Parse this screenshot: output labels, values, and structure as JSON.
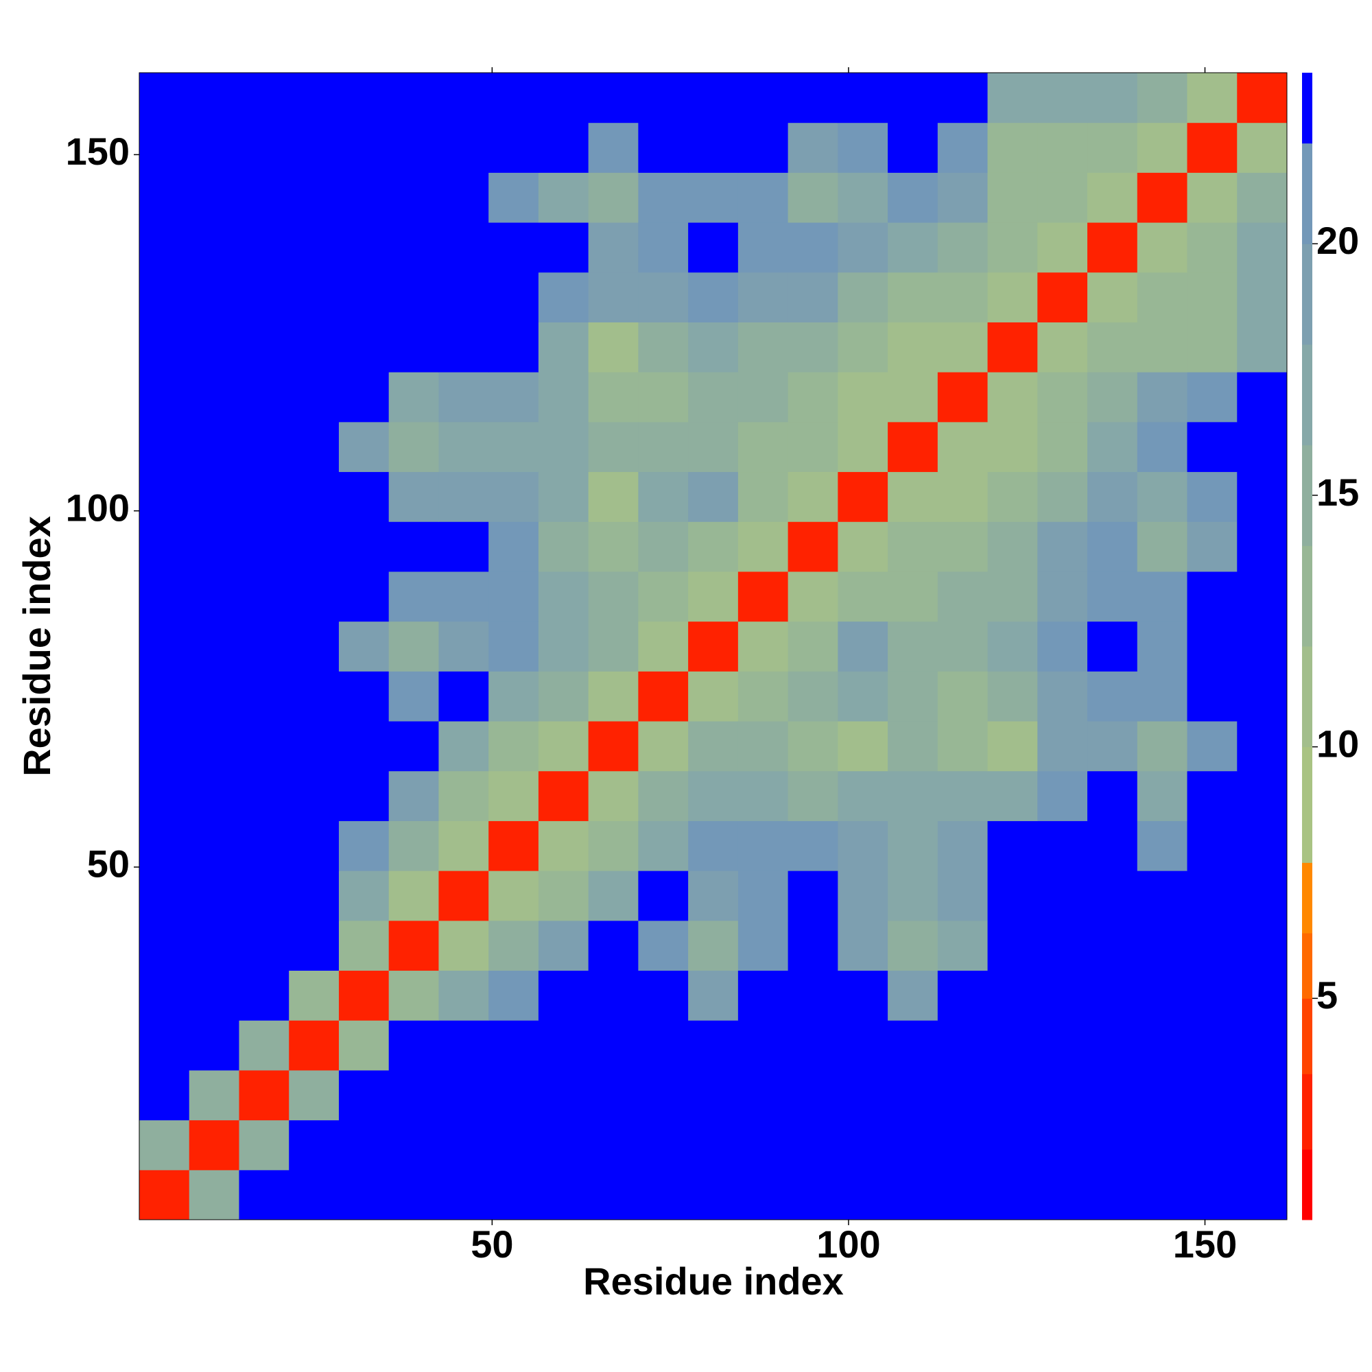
{
  "chart_data": {
    "type": "heatmap",
    "x_label": "Residue index",
    "y_label": "Residue index",
    "xlim": [
      0.5,
      161.5
    ],
    "ylim": [
      0.5,
      161.5
    ],
    "xticks": [
      50,
      100,
      150
    ],
    "yticks": [
      50,
      100,
      150
    ],
    "bins": [
      0.5,
      7.5,
      14.5,
      21.5,
      28.5,
      35.5,
      42.5,
      49.5,
      56.5,
      63.5,
      70.5,
      77.5,
      84.5,
      91.5,
      98.5,
      105.5,
      112.5,
      119.5,
      126.5,
      133.5,
      140.5,
      147.5,
      154.5,
      161.5
    ],
    "zlim": [
      0.6,
      23.4
    ],
    "zticks": [
      5,
      10,
      15,
      20
    ],
    "levels": [
      0.6,
      2,
      3.5,
      5,
      6.3,
      7.7,
      10,
      12,
      14,
      16,
      18,
      20,
      22,
      23.4
    ],
    "colors": [
      "#ff0000",
      "#ff2200",
      "#ff4400",
      "#ff6a00",
      "#ff8800",
      "#a9c383",
      "#a2be8c",
      "#98b795",
      "#8faf9e",
      "#86a8a8",
      "#7d9fb0",
      "#7398b8",
      "#0000ff"
    ],
    "z": [
      [
        3,
        16,
        23,
        23,
        23,
        23,
        23,
        23,
        23,
        23,
        23,
        23,
        23,
        23,
        23,
        23,
        23,
        23,
        23,
        23,
        23,
        23,
        23
      ],
      [
        16,
        3,
        16,
        23,
        23,
        23,
        23,
        23,
        23,
        23,
        23,
        23,
        23,
        23,
        23,
        23,
        23,
        23,
        23,
        23,
        23,
        23,
        23
      ],
      [
        23,
        16,
        3,
        16,
        23,
        23,
        23,
        23,
        23,
        23,
        23,
        23,
        23,
        23,
        23,
        23,
        23,
        23,
        23,
        23,
        23,
        23,
        23
      ],
      [
        23,
        23,
        16,
        3,
        14,
        23,
        23,
        23,
        23,
        23,
        23,
        23,
        23,
        23,
        23,
        23,
        23,
        23,
        23,
        23,
        23,
        23,
        23
      ],
      [
        23,
        23,
        23,
        14,
        3,
        13,
        17,
        21,
        23,
        23,
        23,
        20,
        23,
        23,
        23,
        19,
        23,
        23,
        23,
        23,
        23,
        23,
        23
      ],
      [
        23,
        23,
        23,
        23,
        13,
        3,
        11,
        15,
        19,
        23,
        21,
        15,
        22,
        23,
        19,
        15,
        18,
        23,
        23,
        23,
        23,
        23,
        23
      ],
      [
        23,
        23,
        23,
        23,
        17,
        11,
        3,
        11,
        14,
        18,
        23,
        20,
        21,
        23,
        19,
        17,
        20,
        23,
        23,
        23,
        23,
        23,
        23
      ],
      [
        23,
        23,
        23,
        23,
        21,
        15,
        11,
        3,
        11,
        14,
        18,
        22,
        22,
        21,
        19,
        18,
        20,
        23,
        23,
        23,
        22,
        23,
        23
      ],
      [
        23,
        23,
        23,
        23,
        23,
        19,
        14,
        11,
        3,
        12,
        15,
        17,
        17,
        16,
        17,
        17,
        18,
        18,
        21,
        23,
        18,
        23,
        23
      ],
      [
        23,
        23,
        23,
        23,
        23,
        23,
        18,
        14,
        12,
        3,
        12,
        15,
        16,
        14,
        11,
        15,
        14,
        11,
        19,
        19,
        15,
        21,
        23
      ],
      [
        23,
        23,
        23,
        23,
        23,
        21,
        23,
        18,
        15,
        12,
        3,
        12,
        14,
        15,
        18,
        16,
        14,
        16,
        20,
        22,
        21,
        23,
        23
      ],
      [
        23,
        23,
        23,
        23,
        20,
        15,
        20,
        22,
        17,
        15,
        12,
        3,
        12,
        14,
        20,
        15,
        15,
        17,
        21,
        23,
        22,
        23,
        23
      ],
      [
        23,
        23,
        23,
        23,
        23,
        22,
        21,
        22,
        17,
        16,
        14,
        12,
        3,
        12,
        14,
        13,
        15,
        16,
        19,
        22,
        21,
        23,
        23
      ],
      [
        23,
        23,
        23,
        23,
        23,
        23,
        23,
        21,
        16,
        14,
        15,
        14,
        12,
        3,
        11,
        13,
        13,
        16,
        20,
        21,
        15,
        19,
        23
      ],
      [
        23,
        23,
        23,
        23,
        23,
        19,
        19,
        19,
        17,
        11,
        18,
        20,
        14,
        11,
        3,
        11,
        12,
        14,
        16,
        19,
        17,
        22,
        23
      ],
      [
        23,
        23,
        23,
        23,
        19,
        15,
        17,
        18,
        17,
        15,
        16,
        15,
        13,
        13,
        11,
        3,
        11,
        11,
        14,
        18,
        21,
        23,
        23
      ],
      [
        23,
        23,
        23,
        23,
        23,
        18,
        20,
        20,
        18,
        14,
        14,
        15,
        15,
        13,
        12,
        11,
        3,
        12,
        13,
        16,
        20,
        22,
        23
      ],
      [
        23,
        23,
        23,
        23,
        23,
        23,
        23,
        23,
        18,
        11,
        16,
        17,
        16,
        16,
        14,
        11,
        12,
        3,
        12,
        13,
        14,
        13,
        18
      ],
      [
        23,
        23,
        23,
        23,
        23,
        23,
        23,
        23,
        21,
        19,
        20,
        21,
        19,
        20,
        16,
        14,
        13,
        12,
        3,
        12,
        14,
        13,
        17
      ],
      [
        23,
        23,
        23,
        23,
        23,
        23,
        23,
        23,
        23,
        19,
        22,
        23,
        22,
        21,
        19,
        18,
        16,
        13,
        12,
        3,
        12,
        13,
        17
      ],
      [
        23,
        23,
        23,
        23,
        23,
        23,
        23,
        22,
        18,
        15,
        21,
        22,
        21,
        15,
        17,
        21,
        20,
        14,
        14,
        12,
        3,
        12,
        16
      ],
      [
        23,
        23,
        23,
        23,
        23,
        23,
        23,
        23,
        23,
        21,
        23,
        23,
        23,
        19,
        22,
        23,
        22,
        13,
        13,
        13,
        12,
        3,
        12
      ],
      [
        23,
        23,
        23,
        23,
        23,
        23,
        23,
        23,
        23,
        23,
        23,
        23,
        23,
        23,
        23,
        23,
        23,
        18,
        17,
        17,
        16,
        12,
        3
      ]
    ]
  }
}
